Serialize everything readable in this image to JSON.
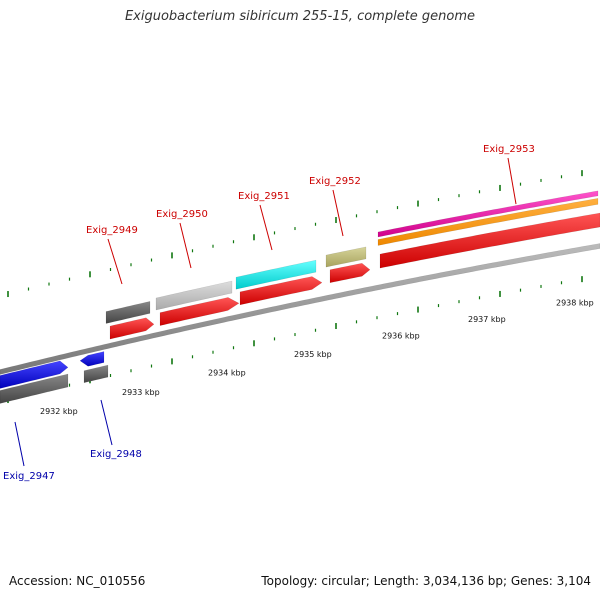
{
  "title": "Exiguobacterium sibiricum 255-15, complete genome",
  "footer": {
    "accession": "Accession: NC_010556",
    "summary": "Topology: circular; Length: 3,034,136 bp; Genes: 3,104"
  },
  "colors": {
    "forward_label": "#cc0000",
    "reverse_label": "#0000aa",
    "backbone": "#888888",
    "tick": "#117711",
    "cds": "#ff0000",
    "reverse_gene": "#0000ee"
  },
  "scale_labels": [
    "2932 kbp",
    "2933 kbp",
    "2934 kbp",
    "2935 kbp",
    "2936 kbp",
    "2937 kbp",
    "2938 kbp"
  ],
  "genes": [
    {
      "name": "Exig_2947",
      "strand": "reverse"
    },
    {
      "name": "Exig_2948",
      "strand": "reverse"
    },
    {
      "name": "Exig_2949",
      "strand": "forward"
    },
    {
      "name": "Exig_2950",
      "strand": "forward"
    },
    {
      "name": "Exig_2951",
      "strand": "forward"
    },
    {
      "name": "Exig_2952",
      "strand": "forward"
    },
    {
      "name": "Exig_2953",
      "strand": "forward"
    }
  ]
}
